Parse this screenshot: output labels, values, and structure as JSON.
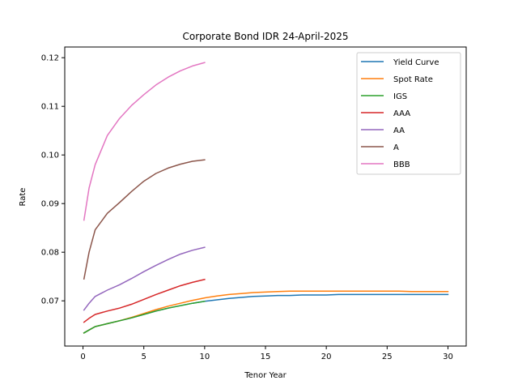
{
  "chart_data": {
    "type": "line",
    "title": "Corporate Bond IDR 24-April-2025",
    "xlabel": "Tenor Year",
    "ylabel": "Rate",
    "xlim": [
      -1.5,
      31.5
    ],
    "ylim": [
      0.0607,
      0.1222
    ],
    "x_ticks": [
      0,
      5,
      10,
      15,
      20,
      25,
      30
    ],
    "x_tick_labels": [
      "0",
      "5",
      "10",
      "15",
      "20",
      "25",
      "30"
    ],
    "y_ticks": [
      0.07,
      0.08,
      0.09,
      0.1,
      0.11,
      0.12
    ],
    "y_tick_labels": [
      "0.07",
      "0.08",
      "0.09",
      "0.10",
      "0.11",
      "0.12"
    ],
    "grid": false,
    "legend_position": "top-right",
    "series": [
      {
        "name": "Yield Curve",
        "color": "#1f77b4",
        "x": [
          0.08,
          0.5,
          1,
          2,
          3,
          4,
          5,
          6,
          7,
          8,
          9,
          10,
          11,
          12,
          13,
          14,
          15,
          16,
          17,
          18,
          19,
          20,
          21,
          22,
          23,
          24,
          25,
          26,
          27,
          28,
          29,
          30
        ],
        "y": [
          0.0634,
          0.064,
          0.0647,
          0.0653,
          0.0659,
          0.0665,
          0.0672,
          0.0679,
          0.0685,
          0.069,
          0.0695,
          0.0699,
          0.0702,
          0.0705,
          0.0707,
          0.0709,
          0.071,
          0.0711,
          0.0711,
          0.0712,
          0.0712,
          0.0712,
          0.0713,
          0.0713,
          0.0713,
          0.0713,
          0.0713,
          0.0713,
          0.0713,
          0.0713,
          0.0713,
          0.0713
        ]
      },
      {
        "name": "Spot Rate",
        "color": "#ff7f0e",
        "x": [
          0.08,
          0.5,
          1,
          2,
          3,
          4,
          5,
          6,
          7,
          8,
          9,
          10,
          11,
          12,
          13,
          14,
          15,
          16,
          17,
          18,
          19,
          20,
          21,
          22,
          23,
          24,
          25,
          26,
          27,
          28,
          29,
          30
        ],
        "y": [
          0.0634,
          0.064,
          0.0647,
          0.0653,
          0.0659,
          0.0666,
          0.0674,
          0.0682,
          0.0689,
          0.0695,
          0.0701,
          0.0706,
          0.071,
          0.0713,
          0.0715,
          0.0717,
          0.0718,
          0.0719,
          0.072,
          0.072,
          0.072,
          0.072,
          0.072,
          0.072,
          0.072,
          0.072,
          0.072,
          0.072,
          0.0719,
          0.0719,
          0.0719,
          0.0719
        ]
      },
      {
        "name": "IGS",
        "color": "#2ca02c",
        "x": [
          0.08,
          0.5,
          1,
          2,
          3,
          4,
          5,
          6,
          7,
          8,
          9,
          10
        ],
        "y": [
          0.0634,
          0.064,
          0.0647,
          0.0653,
          0.0659,
          0.0665,
          0.0672,
          0.0679,
          0.0685,
          0.069,
          0.0695,
          0.0699
        ]
      },
      {
        "name": "AAA",
        "color": "#d62728",
        "x": [
          0.08,
          0.5,
          1,
          2,
          3,
          4,
          5,
          6,
          7,
          8,
          9,
          10
        ],
        "y": [
          0.0656,
          0.0664,
          0.0672,
          0.0679,
          0.0685,
          0.0693,
          0.0703,
          0.0713,
          0.0722,
          0.0731,
          0.0738,
          0.0744
        ]
      },
      {
        "name": "AA",
        "color": "#9467bd",
        "x": [
          0.08,
          0.5,
          1,
          2,
          3,
          4,
          5,
          6,
          7,
          8,
          9,
          10
        ],
        "y": [
          0.0681,
          0.0695,
          0.0709,
          0.0722,
          0.0733,
          0.0746,
          0.076,
          0.0773,
          0.0785,
          0.0796,
          0.0804,
          0.081
        ]
      },
      {
        "name": "A",
        "color": "#8c564b",
        "x": [
          0.08,
          0.5,
          1,
          2,
          3,
          4,
          5,
          6,
          7,
          8,
          9,
          10
        ],
        "y": [
          0.0745,
          0.08,
          0.0846,
          0.088,
          0.0902,
          0.0925,
          0.0946,
          0.0962,
          0.0973,
          0.0981,
          0.0987,
          0.099
        ]
      },
      {
        "name": "BBB",
        "color": "#e377c2",
        "x": [
          0.08,
          0.5,
          1,
          2,
          3,
          4,
          5,
          6,
          7,
          8,
          9,
          10
        ],
        "y": [
          0.0866,
          0.0932,
          0.098,
          0.104,
          0.1075,
          0.1102,
          0.1124,
          0.1144,
          0.116,
          0.1173,
          0.1183,
          0.119
        ]
      }
    ]
  }
}
